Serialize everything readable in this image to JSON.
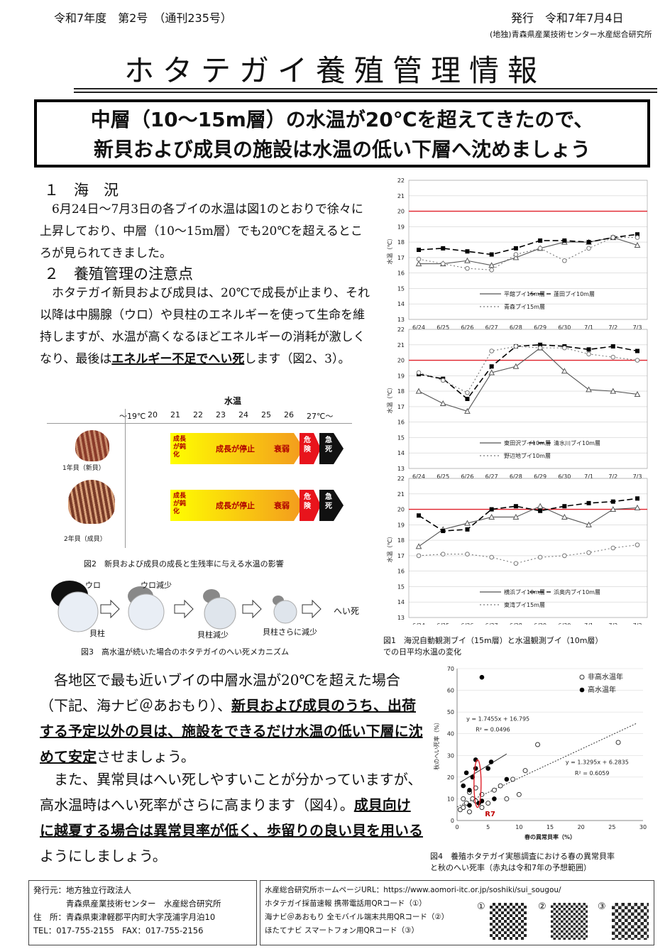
{
  "header": {
    "issue": "令和7年度　第2号　（通刊235号）",
    "issued": "発行　令和7年7月4日",
    "publisher": "(地独)青森県産業技術センター水産総合研究所"
  },
  "title": "ホタテガイ養殖管理情報",
  "banner": {
    "line1": "中層（10～15m層）の水温が20℃を超えてきたので、",
    "line2": "新貝および成貝の施設は水温の低い下層へ沈めましょう"
  },
  "section1": {
    "heading": "１　海　況",
    "text": "　6月24日～7月3日の各ブイの水温は図1のとおりで徐々に上昇しており、中層（10～15m層）でも20℃を超えるところが見られてきました。"
  },
  "section2": {
    "heading": "２　養殖管理の注意点",
    "text": "　ホタテガイ新貝および成貝は、20℃で成長が止まり、それ以降は中腸腺（ウロ）や貝柱のエネルギーを使って生命を維持しますが、水温が高くなるほどエネルギーの消耗が激しくなり、最後は",
    "emph": "エネルギー不足でへい死",
    "tail": "します（図2、3）。"
  },
  "fig2": {
    "axis_title": "水温",
    "temps": [
      "～19℃",
      "20",
      "21",
      "22",
      "23",
      "24",
      "25",
      "26",
      "27℃～"
    ],
    "rows": [
      {
        "label": "1年貝（新貝）",
        "stage1": "成長が鈍化",
        "stage2": "成長が停止",
        "stage3": "衰弱",
        "stage4": "危険",
        "stage5": "急死"
      },
      {
        "label": "2年貝（成貝）",
        "stage1": "成長が鈍化",
        "stage2": "成長が停止",
        "stage3": "衰弱",
        "stage4": "危険",
        "stage5": "急死"
      }
    ],
    "caption": "図2　新貝および成貝の成長と生残率に与える水温の影響"
  },
  "fig3": {
    "labels": [
      "ウロ",
      "ウロ減少",
      "貝柱",
      "貝柱減少",
      "貝柱さらに減少",
      "へい死"
    ],
    "caption": "図3　高水温が続いた場合のホタテガイのへい死メカニズム"
  },
  "fig1": {
    "caption1": "図1　海況自動観測ブイ（15m層）と水温観測ブイ（10m層）",
    "caption2": "での日平均水温の変化",
    "ylabel": "水温（℃）",
    "xlabel": "月日"
  },
  "chart_data": [
    {
      "type": "line",
      "categories": [
        "6/24",
        "6/25",
        "6/26",
        "6/27",
        "6/28",
        "6/29",
        "6/30",
        "7/1",
        "7/2",
        "7/3"
      ],
      "ylim": [
        13,
        22
      ],
      "yticks": [
        "13",
        "14",
        "15",
        "16",
        "17",
        "18",
        "19",
        "20",
        "21",
        "22"
      ],
      "reference_line": 20,
      "series": [
        {
          "name": "平舘ブイ15m層",
          "values": [
            16.6,
            16.6,
            16.8,
            16.5,
            17.0,
            17.6,
            18.0,
            18.0,
            18.3,
            17.8
          ]
        },
        {
          "name": "蓬田ブイ10m層",
          "values": [
            17.5,
            17.6,
            17.4,
            17.2,
            17.6,
            18.1,
            18.1,
            18.0,
            18.3,
            18.5
          ]
        },
        {
          "name": "青森ブイ15m層",
          "values": [
            16.9,
            16.6,
            16.3,
            16.2,
            17.2,
            17.6,
            16.8,
            17.6,
            18.3,
            18.3
          ]
        }
      ]
    },
    {
      "type": "line",
      "categories": [
        "6/24",
        "6/25",
        "6/26",
        "6/27",
        "6/28",
        "6/29",
        "6/30",
        "7/1",
        "7/2",
        "7/3"
      ],
      "ylim": [
        13,
        22
      ],
      "yticks": [
        "13",
        "14",
        "15",
        "16",
        "17",
        "18",
        "19",
        "20",
        "21",
        "22"
      ],
      "reference_line": 20,
      "series": [
        {
          "name": "東田沢ブイ10m層",
          "values": [
            18.0,
            17.2,
            16.7,
            19.2,
            19.6,
            20.8,
            19.3,
            18.1,
            18.0,
            17.8
          ]
        },
        {
          "name": "清水川ブイ10m層",
          "values": [
            19.1,
            18.8,
            17.5,
            19.6,
            20.9,
            21.0,
            20.9,
            20.7,
            20.9,
            20.6
          ]
        },
        {
          "name": "野辺地ブイ10m層",
          "values": [
            19.2,
            18.7,
            17.9,
            20.6,
            20.9,
            20.8,
            20.8,
            20.4,
            20.2,
            20.0
          ]
        }
      ]
    },
    {
      "type": "line",
      "categories": [
        "6/24",
        "6/25",
        "6/26",
        "6/27",
        "6/28",
        "6/29",
        "6/30",
        "7/1",
        "7/2",
        "7/3"
      ],
      "ylim": [
        13,
        22
      ],
      "yticks": [
        "13",
        "14",
        "15",
        "16",
        "17",
        "18",
        "19",
        "20",
        "21",
        "22"
      ],
      "reference_line": 20,
      "series": [
        {
          "name": "横浜ブイ10m層",
          "values": [
            17.6,
            18.7,
            19.1,
            19.5,
            19.5,
            20.2,
            19.5,
            19.0,
            20.0,
            20.1
          ]
        },
        {
          "name": "浜奥内ブイ10m層",
          "values": [
            19.6,
            18.6,
            18.7,
            20.0,
            20.2,
            19.9,
            20.2,
            20.4,
            20.5,
            20.7
          ]
        },
        {
          "name": "東湾ブイ15m層",
          "values": [
            17.0,
            17.1,
            17.1,
            16.9,
            16.5,
            16.9,
            17.0,
            17.2,
            17.5,
            17.7
          ]
        }
      ]
    },
    {
      "type": "scatter",
      "xlabel": "春の異常貝率（%）",
      "ylabel": "秋のへい死率（%）",
      "xlim": [
        0,
        30
      ],
      "ylim": [
        0,
        70
      ],
      "xticks": [
        "0",
        "5",
        "10",
        "15",
        "20",
        "25",
        "30"
      ],
      "yticks": [
        "0",
        "10",
        "20",
        "30",
        "40",
        "50",
        "60",
        "70"
      ],
      "series": [
        {
          "name": "非高水温年",
          "values": [
            [
              0.5,
              5
            ],
            [
              1,
              6
            ],
            [
              1.5,
              8
            ],
            [
              2,
              4
            ],
            [
              2.5,
              10
            ],
            [
              3,
              9
            ],
            [
              3,
              15
            ],
            [
              4,
              12
            ],
            [
              5,
              8
            ],
            [
              6,
              14
            ],
            [
              7,
              16
            ],
            [
              8,
              10
            ],
            [
              9,
              19
            ],
            [
              10,
              12
            ],
            [
              11,
              23
            ],
            [
              13,
              35
            ],
            [
              26,
              36
            ],
            [
              1,
              10
            ],
            [
              2,
              13
            ],
            [
              4,
              6
            ]
          ]
        },
        {
          "name": "高水温年",
          "values": [
            [
              1,
              16
            ],
            [
              2,
              7
            ],
            [
              2,
              14
            ],
            [
              2.5,
              20
            ],
            [
              3,
              24
            ],
            [
              3,
              28
            ],
            [
              3.5,
              8
            ],
            [
              4,
              66
            ],
            [
              4,
              9
            ],
            [
              5,
              24
            ],
            [
              5.5,
              27
            ],
            [
              6,
              10
            ],
            [
              8,
              19
            ],
            [
              1.5,
              22
            ]
          ]
        }
      ],
      "fit_lines": [
        {
          "equation": "y = 1.7455x + 16.795",
          "r2": "R² = 0.0496"
        },
        {
          "equation": "y = 1.3295x + 6.2835",
          "r2": "R² = 0.6059"
        }
      ],
      "annotation": "R7"
    }
  ],
  "body2": {
    "p1a": "　各地区で最も近いブイの中層水温が20℃を超えた場合（下記、海ナビ＠あおもり）、",
    "p1b": "新貝および成貝のうち、出荷する予定以外の貝は、施設をできるだけ水温の低い下層に沈めて安定",
    "p1c": "させましょう。",
    "p2a": "　また、異常貝はへい死しやすいことが分かっていますが、高水温時はへい死率がさらに高まります（図4）。",
    "p2b": "成貝向けに越夏する場合は異常貝率が低く、歩留りの良い貝を用いる",
    "p2c": "ようにしましょう。"
  },
  "fig4": {
    "caption1": "図4　養殖ホタテガイ実態調査における春の異常貝率",
    "caption2": "と秋のへい死率（赤丸は令和7年の予想範囲）"
  },
  "footer_left": {
    "l1": "発行元：地方独立行政法人",
    "l2": "　　　　青森県産業技術センター　水産総合研究所",
    "l3": "住　所：青森県東津軽郡平内町大字茂浦字月泊10",
    "l4": "TEL：017-755-2155　FAX：017-755-2156"
  },
  "footer_right": {
    "l1": "水産総合研究所ホームページURL：https://www.aomori-itc.or.jp/soshiki/sui_sougou/",
    "l2": "ホタテガイ採苗速報 携帯電話用QRコード（①）",
    "l3": "海ナビ＠あおもり 全モバイル端末共用QRコード（②）",
    "l4": "ほたてナビ スマートフォン用QRコード（③）",
    "qr": [
      "①",
      "②",
      "③"
    ]
  },
  "colors": {
    "red_line": "#e0202a",
    "arrow_start": "#ffff00",
    "arrow_end": "#f39a1e",
    "danger": "#e8141c",
    "death": "#111111"
  }
}
